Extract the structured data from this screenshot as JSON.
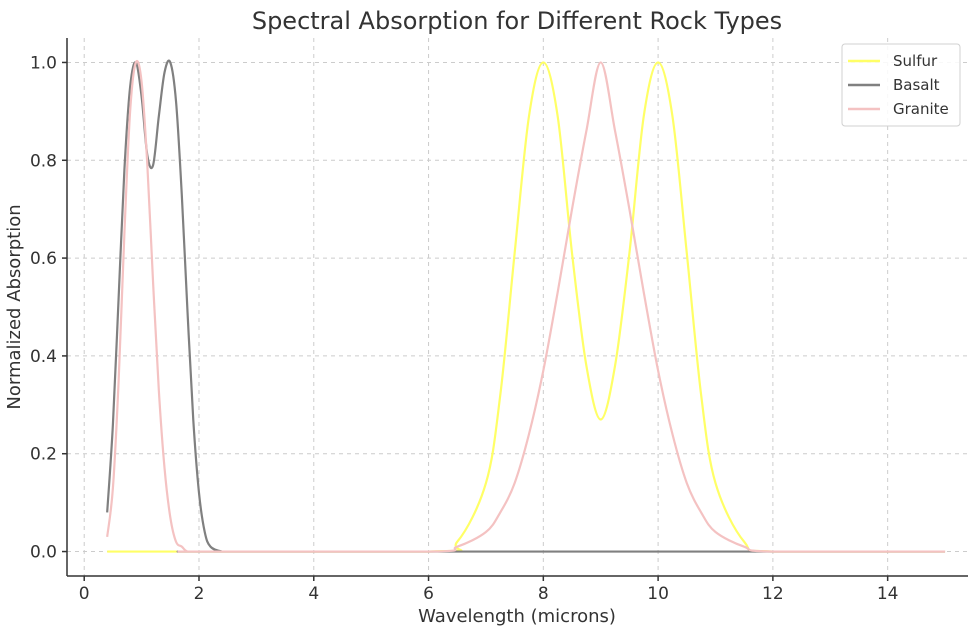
{
  "chart_data": {
    "type": "line",
    "title": "Spectral Absorption for Different Rock Types",
    "xlabel": "Wavelength (microns)",
    "ylabel": "Normalized Absorption",
    "xlim": [
      -0.3,
      15.4
    ],
    "ylim": [
      -0.05,
      1.05
    ],
    "xticks": [
      0,
      2,
      4,
      6,
      8,
      10,
      12,
      14
    ],
    "yticks": [
      0.0,
      0.2,
      0.4,
      0.6,
      0.8,
      1.0
    ],
    "xtick_labels": [
      "0",
      "2",
      "4",
      "6",
      "8",
      "10",
      "12",
      "14"
    ],
    "ytick_labels": [
      "0.0",
      "0.2",
      "0.4",
      "0.6",
      "0.8",
      "1.0"
    ],
    "grid": true,
    "legend_position": "top-right",
    "series": [
      {
        "name": "Sulfur",
        "color": "#ffff66",
        "x": [
          0.4,
          6.0,
          6.5,
          7.0,
          7.25,
          7.5,
          7.75,
          8.0,
          8.25,
          8.5,
          8.75,
          9.0,
          9.25,
          9.5,
          9.75,
          10.0,
          10.25,
          10.5,
          10.75,
          11.0,
          11.5,
          12.0,
          15.0
        ],
        "y": [
          0.0,
          0.0,
          0.02,
          0.14,
          0.32,
          0.61,
          0.89,
          1.0,
          0.89,
          0.61,
          0.38,
          0.27,
          0.38,
          0.61,
          0.89,
          1.0,
          0.89,
          0.61,
          0.32,
          0.14,
          0.02,
          0.0,
          0.0
        ]
      },
      {
        "name": "Basalt",
        "color": "#808080",
        "x": [
          0.4,
          0.5,
          0.6,
          0.7,
          0.8,
          0.9,
          1.0,
          1.1,
          1.2,
          1.3,
          1.4,
          1.5,
          1.6,
          1.7,
          1.8,
          1.9,
          2.0,
          2.1,
          2.2,
          2.4,
          2.6,
          15.0
        ],
        "y": [
          0.08,
          0.26,
          0.52,
          0.78,
          0.95,
          1.0,
          0.93,
          0.81,
          0.79,
          0.89,
          0.98,
          1.0,
          0.92,
          0.73,
          0.49,
          0.27,
          0.12,
          0.04,
          0.01,
          0.0,
          0.0,
          0.0
        ]
      },
      {
        "name": "Granite",
        "color": "#f4c2c2",
        "x": [
          0.4,
          0.5,
          0.6,
          0.7,
          0.8,
          0.9,
          1.0,
          1.1,
          1.2,
          1.3,
          1.4,
          1.5,
          1.6,
          1.7,
          1.8,
          2.0,
          6.0,
          6.5,
          7.0,
          7.25,
          7.5,
          7.75,
          8.0,
          8.25,
          8.5,
          8.75,
          9.0,
          9.25,
          9.5,
          9.75,
          10.0,
          10.25,
          10.5,
          10.75,
          11.0,
          11.5,
          12.0,
          15.0
        ],
        "y": [
          0.03,
          0.13,
          0.35,
          0.65,
          0.9,
          1.0,
          0.96,
          0.79,
          0.55,
          0.33,
          0.17,
          0.07,
          0.02,
          0.01,
          0.0,
          0.0,
          0.0,
          0.01,
          0.04,
          0.08,
          0.14,
          0.24,
          0.37,
          0.53,
          0.7,
          0.86,
          1.0,
          0.86,
          0.7,
          0.53,
          0.37,
          0.24,
          0.14,
          0.08,
          0.04,
          0.01,
          0.0,
          0.0
        ]
      }
    ]
  }
}
